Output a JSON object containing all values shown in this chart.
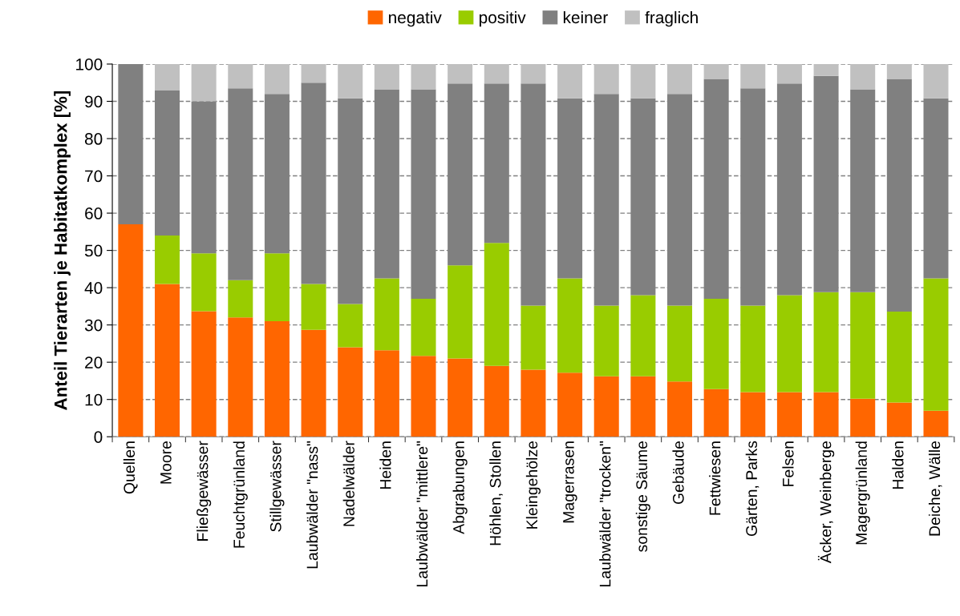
{
  "chart_data": {
    "type": "bar",
    "stacked": true,
    "ylabel": "Anteil Tierarten je Habitatkomplex [%]",
    "categories": [
      "Quellen",
      "Moore",
      "Fließgewässer",
      "Feuchtgrünland",
      "Stillgewässer",
      "Laubwälder \"nass\"",
      "Nadelwälder",
      "Heiden",
      "Laubwälder \"mittlere\"",
      "Abgrabungen",
      "Höhlen, Stollen",
      "Kleingehölze",
      "Magerrasen",
      "Laubwälder \"trocken\"",
      "sonstige Säume",
      "Gebäude",
      "Fettwiesen",
      "Gärten, Parks",
      "Felsen",
      "Äcker, Weinberge",
      "Magergrünland",
      "Halden",
      "Deiche, Wälle"
    ],
    "series": [
      {
        "name": "negativ",
        "color": "#ff6600",
        "values": [
          57,
          41,
          33.7,
          32,
          31,
          28.7,
          24,
          23.2,
          21.7,
          21,
          19,
          18,
          17.2,
          16.2,
          16.2,
          14.8,
          12.8,
          12,
          12,
          12,
          10.2,
          9.2,
          7
        ]
      },
      {
        "name": "positiv",
        "color": "#99cc00",
        "values": [
          0,
          13,
          15.5,
          10,
          18.2,
          12.3,
          11.6,
          19.3,
          15.3,
          25,
          33,
          17.2,
          25.3,
          19,
          21.8,
          20.4,
          24.2,
          23.2,
          26,
          26.8,
          28.6,
          24.4,
          35.5
        ]
      },
      {
        "name": "keiner",
        "color": "#808080",
        "values": [
          43,
          39,
          40.8,
          51.5,
          42.8,
          54,
          55.2,
          50.7,
          56.2,
          48.8,
          42.8,
          59.6,
          48.3,
          56.8,
          52.8,
          56.8,
          59,
          58.3,
          56.8,
          58,
          54.4,
          62.4,
          48.3
        ]
      },
      {
        "name": "fraglich",
        "color": "#c0c0c0",
        "values": [
          0,
          7,
          10,
          6.5,
          8,
          5,
          9.2,
          6.8,
          6.8,
          5.2,
          5.2,
          5.2,
          9.2,
          8,
          9.2,
          8,
          4,
          6.5,
          5.2,
          3.2,
          6.8,
          4,
          9.2
        ]
      }
    ],
    "ylim": [
      0,
      100
    ],
    "yticks": [
      0,
      10,
      20,
      30,
      40,
      50,
      60,
      70,
      80,
      90,
      100
    ],
    "grid": "y",
    "legend": "top"
  }
}
